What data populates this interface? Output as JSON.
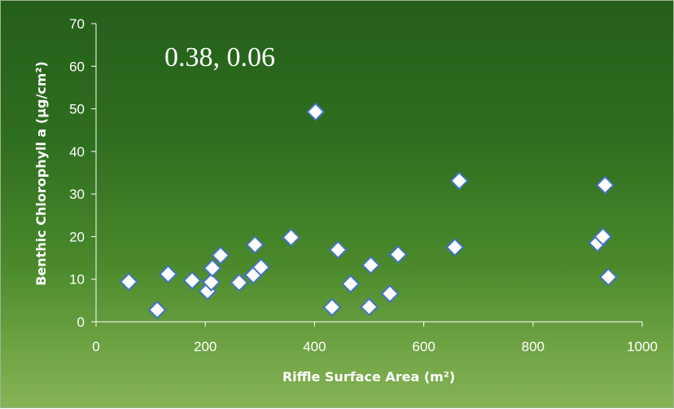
{
  "chart_data": {
    "type": "scatter",
    "xlabel": "Riffle Surface Area (m²)",
    "ylabel": "Benthic Chlorophyll a (µg/cm²)",
    "xlim": [
      0,
      1000
    ],
    "ylim": [
      0,
      70
    ],
    "xticks": [
      0,
      200,
      400,
      600,
      800,
      1000
    ],
    "yticks": [
      0,
      10,
      20,
      30,
      40,
      50,
      60,
      70
    ],
    "annotation": "0.38, 0.06",
    "grid": false,
    "marker": "diamond",
    "marker_fill": "#ffffff",
    "marker_stroke": "#4472c4",
    "series": [
      {
        "points": [
          [
            60,
            9.4
          ],
          [
            112,
            2.8
          ],
          [
            132,
            11.2
          ],
          [
            176,
            9.7
          ],
          [
            204,
            7.2
          ],
          [
            211,
            9.3
          ],
          [
            213,
            12.6
          ],
          [
            228,
            15.6
          ],
          [
            262,
            9.2
          ],
          [
            288,
            11.0
          ],
          [
            291,
            18.1
          ],
          [
            302,
            12.8
          ],
          [
            357,
            19.8
          ],
          [
            402,
            49.3
          ],
          [
            432,
            3.4
          ],
          [
            443,
            16.9
          ],
          [
            466,
            8.9
          ],
          [
            500,
            3.5
          ],
          [
            503,
            13.3
          ],
          [
            538,
            6.6
          ],
          [
            553,
            15.8
          ],
          [
            657,
            17.5
          ],
          [
            665,
            33.1
          ],
          [
            918,
            18.5
          ],
          [
            928,
            20.0
          ],
          [
            932,
            32.1
          ],
          [
            938,
            10.5
          ]
        ]
      }
    ]
  }
}
